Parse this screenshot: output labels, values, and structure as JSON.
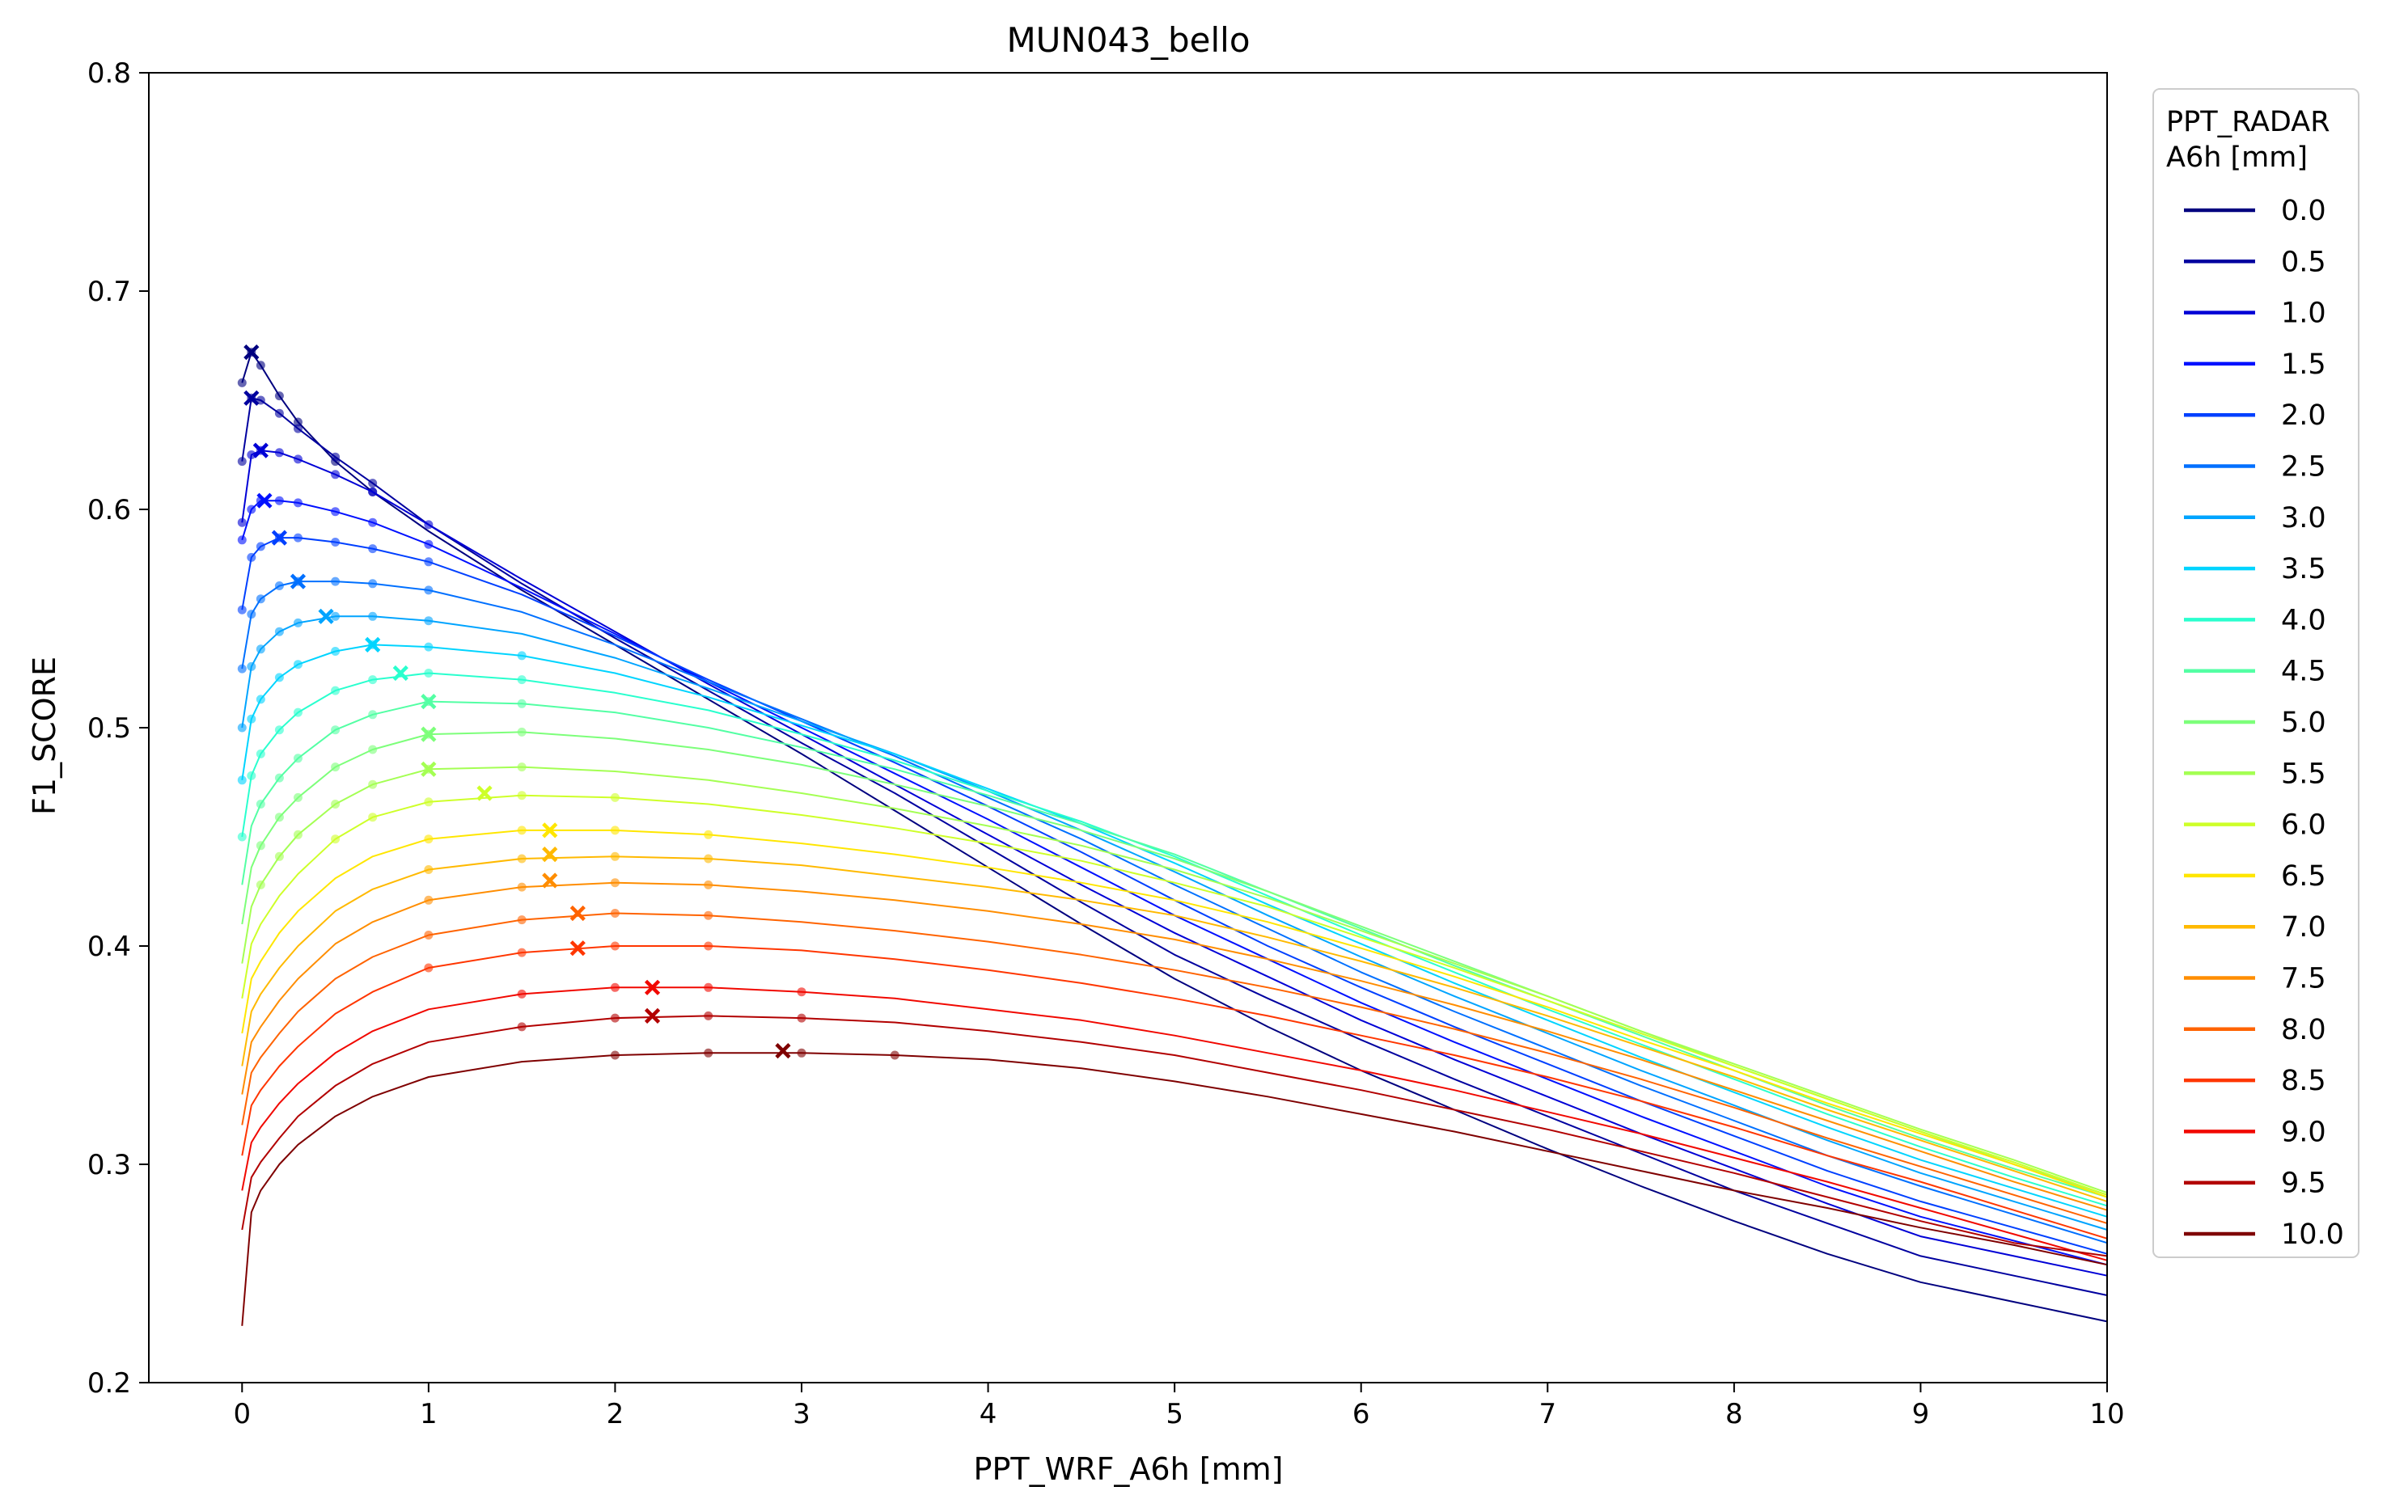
{
  "chart_data": {
    "type": "line",
    "title": "MUN043_bello",
    "xlabel": "PPT_WRF_A6h [mm]",
    "ylabel": "F1_SCORE",
    "xlim": [
      -0.5,
      10
    ],
    "ylim": [
      0.2,
      0.8
    ],
    "x_ticks": [
      0,
      1,
      2,
      3,
      4,
      5,
      6,
      7,
      8,
      9,
      10
    ],
    "y_ticks": [
      0.2,
      0.3,
      0.4,
      0.5,
      0.6,
      0.7,
      0.8
    ],
    "grid": false,
    "legend": {
      "title": "PPT_RADAR\nA6h [mm]",
      "placement": "outside-right-top"
    },
    "x": [
      0,
      0.05,
      0.1,
      0.2,
      0.3,
      0.5,
      0.7,
      1,
      1.5,
      2,
      2.5,
      3,
      3.5,
      4,
      4.5,
      5,
      5.5,
      6,
      6.5,
      7,
      7.5,
      8,
      8.5,
      9,
      9.5,
      10
    ],
    "series": [
      {
        "name": "0.0",
        "color": "#00007f",
        "values": [
          0.658,
          0.672,
          0.666,
          0.652,
          0.64,
          0.622,
          0.608,
          0.59,
          0.563,
          0.538,
          0.513,
          0.488,
          0.462,
          0.436,
          0.41,
          0.385,
          0.363,
          0.343,
          0.325,
          0.307,
          0.29,
          0.274,
          0.259,
          0.246,
          0.237,
          0.228
        ],
        "max": {
          "x": 0.05,
          "y": 0.672
        }
      },
      {
        "name": "0.5",
        "color": "#00009f",
        "values": [
          0.622,
          0.651,
          0.65,
          0.644,
          0.637,
          0.624,
          0.612,
          0.593,
          0.566,
          0.541,
          0.517,
          0.493,
          0.47,
          0.445,
          0.42,
          0.396,
          0.376,
          0.357,
          0.339,
          0.322,
          0.305,
          0.288,
          0.273,
          0.258,
          0.249,
          0.24
        ],
        "max": {
          "x": 0.05,
          "y": 0.651
        }
      },
      {
        "name": "1.0",
        "color": "#0000d6",
        "values": [
          0.594,
          0.625,
          0.627,
          0.626,
          0.623,
          0.616,
          0.608,
          0.593,
          0.568,
          0.544,
          0.52,
          0.497,
          0.474,
          0.451,
          0.428,
          0.406,
          0.386,
          0.366,
          0.348,
          0.331,
          0.314,
          0.298,
          0.282,
          0.267,
          0.258,
          0.249
        ],
        "max": {
          "x": 0.1,
          "y": 0.627
        }
      },
      {
        "name": "1.5",
        "color": "#0010ff",
        "values": [
          0.586,
          0.6,
          0.604,
          0.604,
          0.603,
          0.599,
          0.594,
          0.584,
          0.564,
          0.543,
          0.521,
          0.5,
          0.479,
          0.458,
          0.436,
          0.414,
          0.394,
          0.374,
          0.356,
          0.339,
          0.322,
          0.306,
          0.29,
          0.276,
          0.265,
          0.254
        ],
        "max": {
          "x": 0.12,
          "y": 0.604
        }
      },
      {
        "name": "2.0",
        "color": "#0040ff",
        "values": [
          0.554,
          0.578,
          0.583,
          0.587,
          0.587,
          0.585,
          0.582,
          0.576,
          0.561,
          0.542,
          0.522,
          0.503,
          0.484,
          0.464,
          0.443,
          0.421,
          0.4,
          0.381,
          0.363,
          0.346,
          0.329,
          0.313,
          0.297,
          0.283,
          0.271,
          0.259
        ],
        "max": {
          "x": 0.2,
          "y": 0.587
        }
      },
      {
        "name": "2.5",
        "color": "#0070ff",
        "values": [
          0.527,
          0.552,
          0.559,
          0.565,
          0.567,
          0.567,
          0.566,
          0.563,
          0.553,
          0.538,
          0.521,
          0.504,
          0.487,
          0.468,
          0.449,
          0.428,
          0.408,
          0.388,
          0.37,
          0.353,
          0.336,
          0.32,
          0.304,
          0.29,
          0.277,
          0.264
        ],
        "max": {
          "x": 0.3,
          "y": 0.567
        }
      },
      {
        "name": "3.0",
        "color": "#00a4ff",
        "values": [
          0.5,
          0.528,
          0.536,
          0.544,
          0.548,
          0.551,
          0.551,
          0.549,
          0.543,
          0.532,
          0.518,
          0.503,
          0.488,
          0.471,
          0.453,
          0.434,
          0.414,
          0.395,
          0.377,
          0.36,
          0.343,
          0.327,
          0.311,
          0.296,
          0.283,
          0.27
        ],
        "max": {
          "x": 0.45,
          "y": 0.551
        }
      },
      {
        "name": "3.5",
        "color": "#00d4ff",
        "values": [
          0.476,
          0.504,
          0.513,
          0.523,
          0.529,
          0.535,
          0.538,
          0.537,
          0.533,
          0.525,
          0.514,
          0.501,
          0.488,
          0.472,
          0.456,
          0.438,
          0.419,
          0.401,
          0.383,
          0.366,
          0.349,
          0.333,
          0.317,
          0.302,
          0.289,
          0.276
        ],
        "max": {
          "x": 0.7,
          "y": 0.538
        }
      },
      {
        "name": "4.0",
        "color": "#29ffce",
        "values": [
          0.45,
          0.478,
          0.488,
          0.499,
          0.507,
          0.517,
          0.522,
          0.525,
          0.522,
          0.516,
          0.508,
          0.497,
          0.485,
          0.471,
          0.457,
          0.441,
          0.423,
          0.405,
          0.388,
          0.371,
          0.355,
          0.339,
          0.323,
          0.308,
          0.294,
          0.281
        ],
        "max": {
          "x": 0.85,
          "y": 0.525
        }
      },
      {
        "name": "4.5",
        "color": "#53ffa4",
        "values": [
          0.428,
          0.455,
          0.465,
          0.477,
          0.486,
          0.499,
          0.506,
          0.512,
          0.511,
          0.507,
          0.5,
          0.491,
          0.481,
          0.469,
          0.456,
          0.442,
          0.425,
          0.408,
          0.391,
          0.375,
          0.359,
          0.343,
          0.327,
          0.312,
          0.298,
          0.285
        ],
        "max": {
          "x": 1.0,
          "y": 0.512
        }
      },
      {
        "name": "5.0",
        "color": "#7dff7a",
        "values": [
          0.41,
          0.436,
          0.446,
          0.459,
          0.468,
          0.482,
          0.49,
          0.497,
          0.498,
          0.495,
          0.49,
          0.483,
          0.474,
          0.464,
          0.453,
          0.44,
          0.425,
          0.409,
          0.393,
          0.377,
          0.361,
          0.345,
          0.33,
          0.315,
          0.3,
          0.286
        ],
        "max": {
          "x": 1.0,
          "y": 0.497
        }
      },
      {
        "name": "5.5",
        "color": "#a4ff53",
        "values": [
          0.392,
          0.418,
          0.428,
          0.441,
          0.451,
          0.465,
          0.474,
          0.481,
          0.482,
          0.48,
          0.476,
          0.47,
          0.463,
          0.455,
          0.446,
          0.435,
          0.422,
          0.407,
          0.392,
          0.377,
          0.361,
          0.346,
          0.331,
          0.316,
          0.302,
          0.287
        ],
        "max": {
          "x": 1.0,
          "y": 0.481
        }
      },
      {
        "name": "6.0",
        "color": "#ceff29",
        "values": [
          0.376,
          0.401,
          0.41,
          0.423,
          0.433,
          0.449,
          0.459,
          0.466,
          0.469,
          0.468,
          0.465,
          0.46,
          0.454,
          0.447,
          0.439,
          0.429,
          0.418,
          0.404,
          0.39,
          0.375,
          0.36,
          0.345,
          0.33,
          0.315,
          0.301,
          0.286
        ],
        "max": {
          "x": 1.3,
          "y": 0.47
        }
      },
      {
        "name": "6.5",
        "color": "#ffe600",
        "values": [
          0.36,
          0.385,
          0.393,
          0.406,
          0.416,
          0.431,
          0.441,
          0.449,
          0.453,
          0.453,
          0.451,
          0.447,
          0.442,
          0.436,
          0.429,
          0.421,
          0.411,
          0.399,
          0.386,
          0.372,
          0.357,
          0.343,
          0.328,
          0.314,
          0.3,
          0.285
        ],
        "max": {
          "x": 1.65,
          "y": 0.453
        }
      },
      {
        "name": "7.0",
        "color": "#ffb900",
        "values": [
          0.345,
          0.37,
          0.378,
          0.39,
          0.4,
          0.416,
          0.426,
          0.435,
          0.44,
          0.441,
          0.44,
          0.437,
          0.432,
          0.427,
          0.421,
          0.414,
          0.404,
          0.393,
          0.381,
          0.368,
          0.354,
          0.34,
          0.325,
          0.311,
          0.297,
          0.283
        ],
        "max": {
          "x": 1.65,
          "y": 0.442
        }
      },
      {
        "name": "7.5",
        "color": "#ff8d00",
        "values": [
          0.332,
          0.356,
          0.363,
          0.375,
          0.385,
          0.401,
          0.411,
          0.421,
          0.427,
          0.429,
          0.428,
          0.425,
          0.421,
          0.416,
          0.41,
          0.403,
          0.394,
          0.384,
          0.373,
          0.361,
          0.348,
          0.334,
          0.32,
          0.306,
          0.292,
          0.279
        ],
        "max": {
          "x": 1.65,
          "y": 0.43
        }
      },
      {
        "name": "8.0",
        "color": "#ff6300",
        "values": [
          0.318,
          0.342,
          0.349,
          0.36,
          0.37,
          0.385,
          0.395,
          0.405,
          0.412,
          0.415,
          0.414,
          0.411,
          0.407,
          0.402,
          0.396,
          0.389,
          0.381,
          0.372,
          0.362,
          0.351,
          0.339,
          0.326,
          0.312,
          0.299,
          0.286,
          0.273
        ],
        "max": {
          "x": 1.8,
          "y": 0.415
        }
      },
      {
        "name": "8.5",
        "color": "#ff3600",
        "values": [
          0.304,
          0.327,
          0.334,
          0.345,
          0.354,
          0.369,
          0.379,
          0.39,
          0.397,
          0.4,
          0.4,
          0.398,
          0.394,
          0.389,
          0.383,
          0.376,
          0.368,
          0.359,
          0.35,
          0.34,
          0.329,
          0.317,
          0.304,
          0.292,
          0.279,
          0.266
        ],
        "max": {
          "x": 1.8,
          "y": 0.399
        }
      },
      {
        "name": "9.0",
        "color": "#f10800",
        "values": [
          0.288,
          0.31,
          0.317,
          0.328,
          0.337,
          0.351,
          0.361,
          0.371,
          0.378,
          0.381,
          0.381,
          0.379,
          0.376,
          0.371,
          0.366,
          0.359,
          0.351,
          0.343,
          0.334,
          0.324,
          0.314,
          0.303,
          0.292,
          0.28,
          0.268,
          0.256
        ],
        "max": {
          "x": 2.2,
          "y": 0.381
        }
      },
      {
        "name": "9.5",
        "color": "#b20000",
        "values": [
          0.27,
          0.294,
          0.301,
          0.312,
          0.322,
          0.336,
          0.346,
          0.356,
          0.363,
          0.367,
          0.368,
          0.367,
          0.365,
          0.361,
          0.356,
          0.35,
          0.342,
          0.334,
          0.325,
          0.316,
          0.306,
          0.296,
          0.285,
          0.274,
          0.264,
          0.258
        ],
        "max": {
          "x": 2.2,
          "y": 0.368
        }
      },
      {
        "name": "10.0",
        "color": "#7f0000",
        "values": [
          0.226,
          0.278,
          0.288,
          0.3,
          0.309,
          0.322,
          0.331,
          0.34,
          0.347,
          0.35,
          0.351,
          0.351,
          0.35,
          0.348,
          0.344,
          0.338,
          0.331,
          0.323,
          0.315,
          0.306,
          0.297,
          0.288,
          0.28,
          0.271,
          0.263,
          0.254
        ],
        "max": {
          "x": 2.9,
          "y": 0.352
        }
      }
    ]
  }
}
